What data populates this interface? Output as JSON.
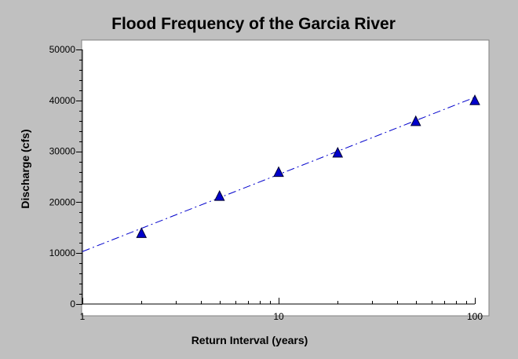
{
  "chart_data": {
    "type": "scatter",
    "title": "Flood Frequency of the Garcia River",
    "xlabel": "Return Interval (years)",
    "ylabel": "Discharge (cfs)",
    "x_scale": "log",
    "xlim": [
      1,
      100
    ],
    "ylim": [
      0,
      50000
    ],
    "x_ticks": [
      "1",
      "10",
      "100"
    ],
    "y_ticks": [
      "0",
      "10000",
      "20000",
      "30000",
      "40000",
      "50000"
    ],
    "grid": false,
    "series": [
      {
        "marker": "triangle",
        "color": "#0000cc",
        "x": [
          2,
          5,
          10,
          20,
          50,
          100
        ],
        "y": [
          13900,
          21200,
          25900,
          29700,
          35900,
          40000
        ]
      }
    ],
    "trendline": {
      "type": "logarithmic",
      "style": "dash-dot",
      "color": "#0000cc",
      "x": [
        1,
        100
      ],
      "y": [
        10300,
        40600
      ]
    }
  },
  "colors": {
    "background": "#c0c0c0",
    "plot_area": "#ffffff",
    "marker": "#0000cc",
    "trendline": "#0000cc"
  }
}
